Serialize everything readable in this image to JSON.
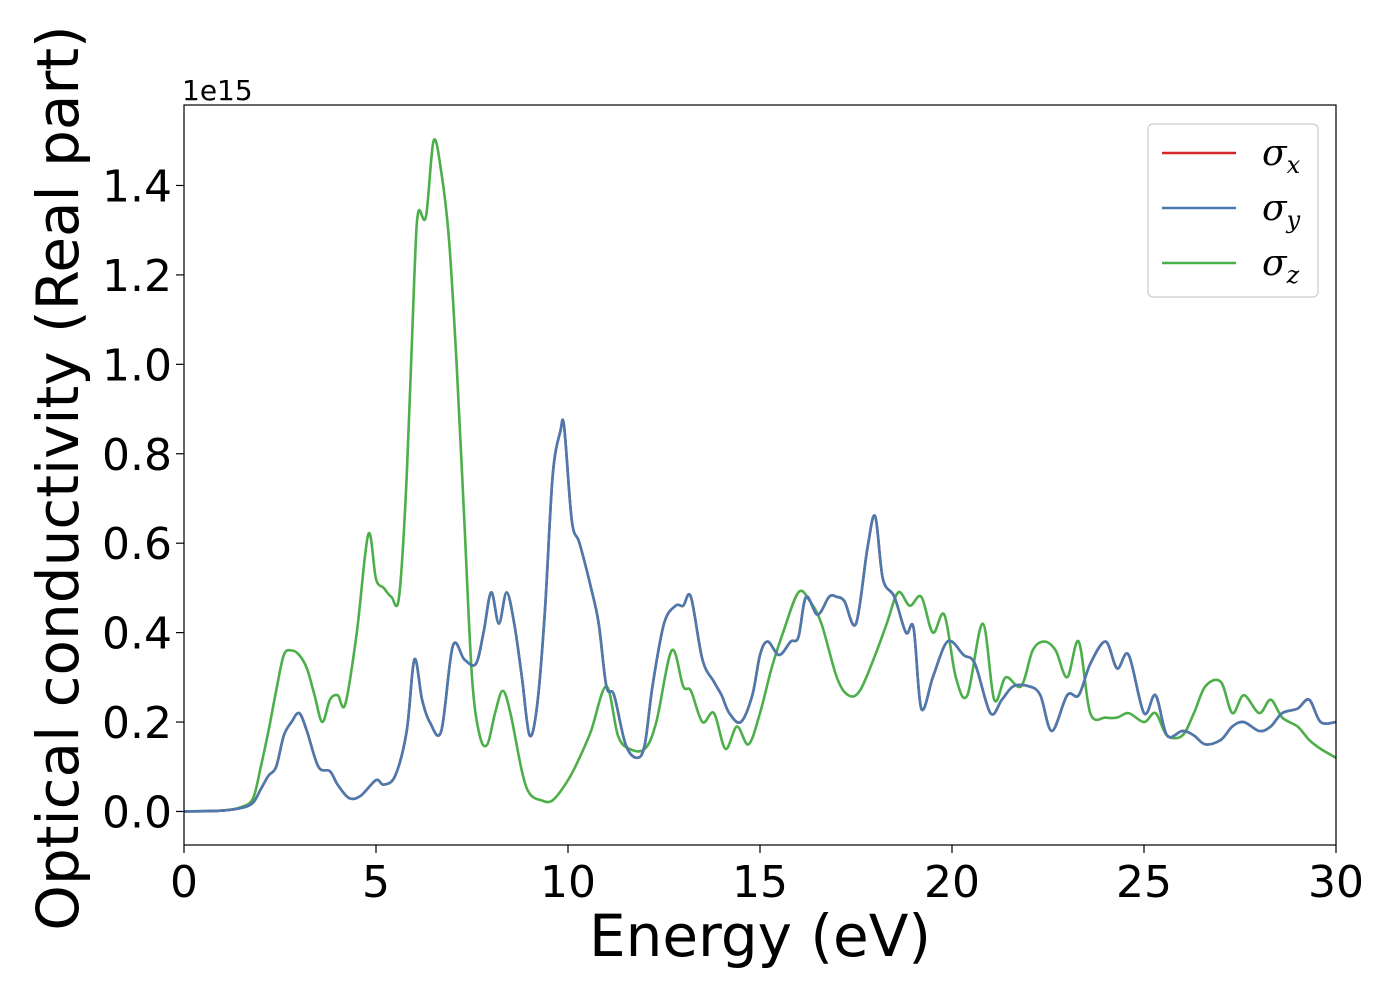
{
  "chart_data": {
    "type": "line",
    "title": "",
    "xlabel": "Energy (eV)",
    "ylabel": "Optical conductivity (Real part)",
    "y_offset_text": "1e15",
    "xlim": [
      0,
      30
    ],
    "ylim": [
      -0.075,
      1.58
    ],
    "x_ticks": [
      0,
      5,
      10,
      15,
      20,
      25,
      30
    ],
    "y_ticks": [
      0.0,
      0.2,
      0.4,
      0.6,
      0.8,
      1.0,
      1.2,
      1.4
    ],
    "x_tick_labels": [
      "0",
      "5",
      "10",
      "15",
      "20",
      "25",
      "30"
    ],
    "y_tick_labels": [
      "0.0",
      "0.2",
      "0.4",
      "0.6",
      "0.8",
      "1.0",
      "1.2",
      "1.4"
    ],
    "grid": false,
    "legend_position": "upper right",
    "series": [
      {
        "name": "σx",
        "symbol": "σ",
        "subscript": "x",
        "color": "#d62728",
        "x": [
          0,
          1,
          1.5,
          1.8,
          2,
          2.2,
          2.4,
          2.6,
          2.8,
          3,
          3.2,
          3.5,
          3.8,
          4,
          4.3,
          4.6,
          5,
          5.2,
          5.5,
          5.8,
          6,
          6.2,
          6.4,
          6.7,
          7,
          7.3,
          7.6,
          7.8,
          8,
          8.2,
          8.4,
          8.6,
          8.8,
          9,
          9.2,
          9.4,
          9.6,
          9.8,
          9.9,
          10.1,
          10.3,
          10.6,
          10.8,
          11,
          11.2,
          11.5,
          11.8,
          12,
          12.2,
          12.5,
          12.8,
          13,
          13.2,
          13.5,
          13.8,
          14,
          14.2,
          14.5,
          14.8,
          15,
          15.2,
          15.5,
          15.8,
          16,
          16.2,
          16.5,
          16.8,
          17,
          17.2,
          17.5,
          17.8,
          18,
          18.2,
          18.5,
          18.8,
          19,
          19.2,
          19.5,
          19.8,
          20,
          20.3,
          20.6,
          21,
          21.3,
          21.6,
          22,
          22.3,
          22.6,
          23,
          23.3,
          23.6,
          24,
          24.3,
          24.6,
          25,
          25.3,
          25.6,
          26,
          26.3,
          26.6,
          27,
          27.3,
          27.6,
          28,
          28.3,
          28.6,
          29,
          29.3,
          29.6,
          30
        ],
        "y": [
          0,
          0.002,
          0.008,
          0.02,
          0.05,
          0.08,
          0.1,
          0.17,
          0.2,
          0.22,
          0.18,
          0.1,
          0.09,
          0.06,
          0.03,
          0.035,
          0.07,
          0.06,
          0.08,
          0.18,
          0.34,
          0.25,
          0.2,
          0.18,
          0.37,
          0.34,
          0.33,
          0.4,
          0.49,
          0.42,
          0.49,
          0.42,
          0.3,
          0.17,
          0.24,
          0.45,
          0.75,
          0.85,
          0.86,
          0.65,
          0.6,
          0.5,
          0.42,
          0.28,
          0.26,
          0.15,
          0.12,
          0.15,
          0.28,
          0.42,
          0.46,
          0.46,
          0.48,
          0.34,
          0.29,
          0.26,
          0.22,
          0.2,
          0.26,
          0.35,
          0.38,
          0.35,
          0.38,
          0.39,
          0.48,
          0.44,
          0.48,
          0.48,
          0.47,
          0.42,
          0.59,
          0.66,
          0.52,
          0.48,
          0.4,
          0.41,
          0.23,
          0.3,
          0.37,
          0.38,
          0.35,
          0.33,
          0.22,
          0.25,
          0.28,
          0.28,
          0.26,
          0.18,
          0.26,
          0.26,
          0.33,
          0.38,
          0.32,
          0.35,
          0.22,
          0.26,
          0.17,
          0.18,
          0.17,
          0.15,
          0.16,
          0.19,
          0.2,
          0.18,
          0.19,
          0.22,
          0.23,
          0.25,
          0.2,
          0.2
        ]
      },
      {
        "name": "σy",
        "symbol": "σ",
        "subscript": "y",
        "color": "#4a7ab0",
        "x": [
          0,
          1,
          1.5,
          1.8,
          2,
          2.2,
          2.4,
          2.6,
          2.8,
          3,
          3.2,
          3.5,
          3.8,
          4,
          4.3,
          4.6,
          5,
          5.2,
          5.5,
          5.8,
          6,
          6.2,
          6.4,
          6.7,
          7,
          7.3,
          7.6,
          7.8,
          8,
          8.2,
          8.4,
          8.6,
          8.8,
          9,
          9.2,
          9.4,
          9.6,
          9.8,
          9.9,
          10.1,
          10.3,
          10.6,
          10.8,
          11,
          11.2,
          11.5,
          11.8,
          12,
          12.2,
          12.5,
          12.8,
          13,
          13.2,
          13.5,
          13.8,
          14,
          14.2,
          14.5,
          14.8,
          15,
          15.2,
          15.5,
          15.8,
          16,
          16.2,
          16.5,
          16.8,
          17,
          17.2,
          17.5,
          17.8,
          18,
          18.2,
          18.5,
          18.8,
          19,
          19.2,
          19.5,
          19.8,
          20,
          20.3,
          20.6,
          21,
          21.3,
          21.6,
          22,
          22.3,
          22.6,
          23,
          23.3,
          23.6,
          24,
          24.3,
          24.6,
          25,
          25.3,
          25.6,
          26,
          26.3,
          26.6,
          27,
          27.3,
          27.6,
          28,
          28.3,
          28.6,
          29,
          29.3,
          29.6,
          30
        ],
        "y": [
          0,
          0.002,
          0.008,
          0.02,
          0.05,
          0.08,
          0.1,
          0.17,
          0.2,
          0.22,
          0.18,
          0.1,
          0.09,
          0.06,
          0.03,
          0.035,
          0.07,
          0.06,
          0.08,
          0.18,
          0.34,
          0.25,
          0.2,
          0.18,
          0.37,
          0.34,
          0.33,
          0.4,
          0.49,
          0.42,
          0.49,
          0.42,
          0.3,
          0.17,
          0.24,
          0.45,
          0.75,
          0.85,
          0.86,
          0.65,
          0.6,
          0.5,
          0.42,
          0.28,
          0.26,
          0.15,
          0.12,
          0.15,
          0.28,
          0.42,
          0.46,
          0.46,
          0.48,
          0.34,
          0.29,
          0.26,
          0.22,
          0.2,
          0.26,
          0.35,
          0.38,
          0.35,
          0.38,
          0.39,
          0.48,
          0.44,
          0.48,
          0.48,
          0.47,
          0.42,
          0.59,
          0.66,
          0.52,
          0.48,
          0.4,
          0.41,
          0.23,
          0.3,
          0.37,
          0.38,
          0.35,
          0.33,
          0.22,
          0.25,
          0.28,
          0.28,
          0.26,
          0.18,
          0.26,
          0.26,
          0.33,
          0.38,
          0.32,
          0.35,
          0.22,
          0.26,
          0.17,
          0.18,
          0.17,
          0.15,
          0.16,
          0.19,
          0.2,
          0.18,
          0.19,
          0.22,
          0.23,
          0.25,
          0.2,
          0.2
        ]
      },
      {
        "name": "σz",
        "symbol": "σ",
        "subscript": "z",
        "color": "#4daf4a",
        "x": [
          0,
          1,
          1.5,
          1.8,
          2,
          2.2,
          2.4,
          2.6,
          2.8,
          3,
          3.2,
          3.4,
          3.6,
          3.8,
          4,
          4.2,
          4.5,
          4.8,
          5,
          5.2,
          5.4,
          5.6,
          5.8,
          6,
          6.1,
          6.3,
          6.5,
          6.7,
          6.9,
          7.1,
          7.3,
          7.5,
          7.7,
          7.9,
          8.1,
          8.3,
          8.5,
          8.8,
          9,
          9.3,
          9.6,
          10,
          10.3,
          10.6,
          11,
          11.3,
          11.6,
          12,
          12.3,
          12.7,
          13,
          13.2,
          13.5,
          13.8,
          14.1,
          14.4,
          14.7,
          15,
          15.3,
          15.6,
          16,
          16.3,
          16.6,
          17,
          17.3,
          17.6,
          18,
          18.3,
          18.6,
          18.9,
          19.2,
          19.5,
          19.8,
          20.1,
          20.4,
          20.8,
          21.1,
          21.4,
          21.8,
          22.1,
          22.4,
          22.7,
          23,
          23.3,
          23.6,
          24,
          24.3,
          24.6,
          25,
          25.3,
          25.6,
          26,
          26.3,
          26.6,
          27,
          27.3,
          27.6,
          28,
          28.3,
          28.6,
          29,
          29.3,
          29.6,
          30
        ],
        "y": [
          0,
          0.002,
          0.01,
          0.03,
          0.1,
          0.18,
          0.27,
          0.35,
          0.36,
          0.35,
          0.32,
          0.26,
          0.2,
          0.25,
          0.26,
          0.24,
          0.4,
          0.62,
          0.52,
          0.5,
          0.48,
          0.48,
          0.75,
          1.2,
          1.34,
          1.33,
          1.5,
          1.43,
          1.28,
          1.0,
          0.65,
          0.3,
          0.17,
          0.15,
          0.22,
          0.27,
          0.22,
          0.09,
          0.04,
          0.025,
          0.025,
          0.07,
          0.12,
          0.18,
          0.28,
          0.17,
          0.14,
          0.14,
          0.2,
          0.36,
          0.28,
          0.27,
          0.2,
          0.22,
          0.14,
          0.19,
          0.15,
          0.22,
          0.32,
          0.4,
          0.49,
          0.47,
          0.42,
          0.3,
          0.26,
          0.27,
          0.35,
          0.42,
          0.49,
          0.46,
          0.48,
          0.4,
          0.44,
          0.3,
          0.26,
          0.42,
          0.25,
          0.3,
          0.28,
          0.36,
          0.38,
          0.36,
          0.3,
          0.38,
          0.22,
          0.21,
          0.21,
          0.22,
          0.2,
          0.22,
          0.17,
          0.17,
          0.22,
          0.28,
          0.29,
          0.22,
          0.26,
          0.22,
          0.25,
          0.21,
          0.19,
          0.16,
          0.14,
          0.12
        ]
      }
    ]
  }
}
